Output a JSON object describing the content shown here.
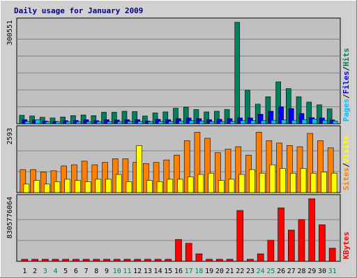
{
  "chart_data": {
    "title": "Daily usage for January 2009",
    "type": "bar",
    "categories": [
      "1",
      "2",
      "3",
      "4",
      "5",
      "6",
      "7",
      "8",
      "9",
      "10",
      "11",
      "12",
      "13",
      "14",
      "15",
      "16",
      "17",
      "18",
      "19",
      "20",
      "21",
      "22",
      "23",
      "24",
      "25",
      "26",
      "27",
      "28",
      "29",
      "30",
      "31"
    ],
    "weekend_days": [
      "3",
      "4",
      "10",
      "11",
      "17",
      "18",
      "24",
      "25",
      "31"
    ],
    "colors": {
      "hits": "#00805c",
      "files": "#0000ff",
      "pages": "#00c0ff",
      "sites": "#ff8000",
      "visits": "#ffff00",
      "kbytes": "#ff0000",
      "weekday_label": "#000000",
      "weekend_label": "#00805c",
      "background": "#c0c0c0",
      "frame": "#d0d0d0",
      "title": "#00008b"
    },
    "panels": [
      {
        "id": "hits-files-pages",
        "ymax_label": "300551",
        "ymax": 300551,
        "legend": [
          "Pages",
          "Files",
          "Hits"
        ],
        "series": [
          {
            "name": "Hits",
            "values": [
              25000,
              23000,
              19000,
              17000,
              20000,
              24000,
              26000,
              24000,
              34000,
              34000,
              37000,
              36000,
              23000,
              32000,
              35000,
              46000,
              49000,
              42000,
              35000,
              37000,
              42000,
              300551,
              99000,
              58000,
              80000,
              124000,
              104000,
              80000,
              64000,
              56000,
              44000
            ]
          },
          {
            "name": "Files",
            "values": [
              12000,
              11000,
              8000,
              7000,
              9000,
              9500,
              12000,
              9000,
              12000,
              11000,
              12000,
              12000,
              8000,
              13000,
              12000,
              15000,
              17000,
              15000,
              12000,
              13000,
              15000,
              17000,
              17000,
              28000,
              37000,
              50000,
              45000,
              30000,
              18000,
              17000,
              11000
            ]
          },
          {
            "name": "Pages",
            "values": [
              7000,
              12000,
              6000,
              4000,
              5000,
              5000,
              6000,
              4000,
              5000,
              6000,
              7000,
              7000,
              6000,
              7000,
              7000,
              8000,
              9000,
              8000,
              5000,
              6000,
              7000,
              9000,
              9000,
              9000,
              10000,
              11000,
              10000,
              12000,
              14000,
              10000,
              8000
            ]
          }
        ]
      },
      {
        "id": "sites-visits",
        "ymax_label": "2593",
        "ymax": 2593,
        "legend": [
          "Sites",
          "Visits"
        ],
        "series": [
          {
            "name": "Sites",
            "values": [
              950,
              950,
              850,
              900,
              1100,
              1150,
              1300,
              1150,
              1250,
              1400,
              1400,
              1250,
              1200,
              1250,
              1350,
              1550,
              2150,
              2500,
              2250,
              1650,
              1800,
              1900,
              1550,
              2500,
              2150,
              2050,
              1950,
              1900,
              2450,
              2150,
              1850
            ]
          },
          {
            "name": "Visits",
            "values": [
              350,
              500,
              350,
              450,
              550,
              500,
              450,
              550,
              550,
              750,
              450,
              1950,
              500,
              450,
              550,
              550,
              650,
              750,
              800,
              500,
              550,
              750,
              950,
              800,
              1150,
              1000,
              800,
              1000,
              800,
              850,
              800
            ]
          }
        ]
      },
      {
        "id": "kbytes",
        "ymax_label": "8305776064",
        "ymax": 8305776064,
        "legend": [
          "KBytes"
        ],
        "series": [
          {
            "name": "KBytes",
            "values": [
              80000000,
              80000000,
              80000000,
              80000000,
              80000000,
              80000000,
              80000000,
              80000000,
              80000000,
              80000000,
              190000000,
              140000000,
              80000000,
              190000000,
              240000000,
              2900000000,
              2400000000,
              1000000000,
              80000000,
              80000000,
              80000000,
              6750000000,
              80000000,
              1000000000,
              2800000000,
              7100000000,
              4150000000,
              5550000000,
              8305776064,
              4850000000,
              1750000000
            ]
          }
        ]
      }
    ]
  }
}
